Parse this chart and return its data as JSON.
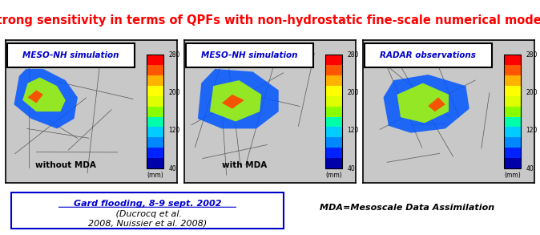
{
  "title": "Strong sensitivity in terms of QPFs with non-hydrostatic fine-scale numerical models",
  "title_color": "#FF0000",
  "title_fontsize": 10.5,
  "panel_labels": [
    "MESO-NH simulation",
    "MESO-NH simulation",
    "RADAR observations"
  ],
  "panel_label_color": "#0000CC",
  "panel_sublabels": [
    "without MDA",
    "with MDA",
    ""
  ],
  "colorbar_ticks": [
    40,
    120,
    200,
    280
  ],
  "colorbar_unit": "(mm)",
  "colorbar_colors": [
    "#0000AA",
    "#0022FF",
    "#0088FF",
    "#00CCFF",
    "#00FFAA",
    "#88FF00",
    "#DDFF00",
    "#FFFF00",
    "#FFB300",
    "#FF5500",
    "#FF0000"
  ],
  "bg_color": "#FFFFFF",
  "box_text_link": "Gard flooding, 8-9 sept. 2002",
  "box_text_ref": " (Ducrocq et al.\n2008, Nuissier et al. 2008)",
  "box_text_color_link": "#0000CC",
  "box_text_color_ref": "#000000",
  "mda_text": "MDA=Mesoscale Data Assimilation",
  "mda_text_color": "#000000",
  "map_bg": "#C8C8C8",
  "border_color": "#000000"
}
